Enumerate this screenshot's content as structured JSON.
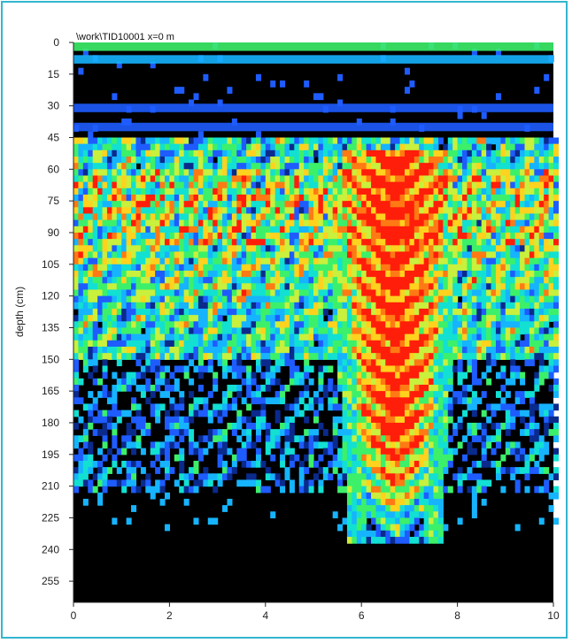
{
  "colors": {
    "frame_border": "#33b6cf",
    "plot_background": "#000000",
    "palette": [
      "#000000",
      "#0a2a8c",
      "#1e5cff",
      "#16b4ff",
      "#12e0d2",
      "#3cf06a",
      "#c8f03c",
      "#ffd21e",
      "#ff7a14",
      "#ff1e0a"
    ]
  },
  "chart_data": {
    "type": "heatmap",
    "title": "\\work\\TID10001   x=0 m",
    "xlabel": "",
    "ylabel": "depth (cm)",
    "xlim": [
      0,
      10
    ],
    "ylim": [
      265,
      0
    ],
    "x_ticks": [
      0,
      2,
      4,
      6,
      8,
      10
    ],
    "y_ticks": [
      0,
      15,
      30,
      45,
      60,
      75,
      90,
      105,
      120,
      135,
      150,
      165,
      180,
      195,
      210,
      225,
      240,
      255
    ],
    "grid": false,
    "colormap": "jet (black background = no reflection, red = strongest reflection)",
    "reflectors": [
      {
        "kind": "horizontal band",
        "depth_cm": 2,
        "x_range": [
          0,
          10
        ],
        "intensity": "green/cyan"
      },
      {
        "kind": "horizontal band",
        "depth_cm": 8,
        "x_range": [
          0,
          10
        ],
        "intensity": "blue/cyan"
      },
      {
        "kind": "horizontal band",
        "depth_cm": 31,
        "x_range": [
          0,
          10
        ],
        "intensity": "blue"
      },
      {
        "kind": "horizontal band",
        "depth_cm": 40,
        "x_range": [
          0,
          10
        ],
        "intensity": "blue"
      },
      {
        "kind": "scattered layer",
        "depth_cm": [
          45,
          150
        ],
        "x_range": [
          0,
          10
        ],
        "intensity": "green/yellow with red patches"
      },
      {
        "kind": "noisy layer",
        "depth_cm": [
          150,
          210
        ],
        "x_range": [
          0,
          10
        ],
        "intensity": "blue"
      },
      {
        "kind": "hyperbolic anomaly",
        "apex_x": 6.7,
        "apex_depth_cm": 55,
        "bottom_depth_cm": 238,
        "half_width_top_m": 1.1,
        "intensity": "red"
      }
    ]
  }
}
